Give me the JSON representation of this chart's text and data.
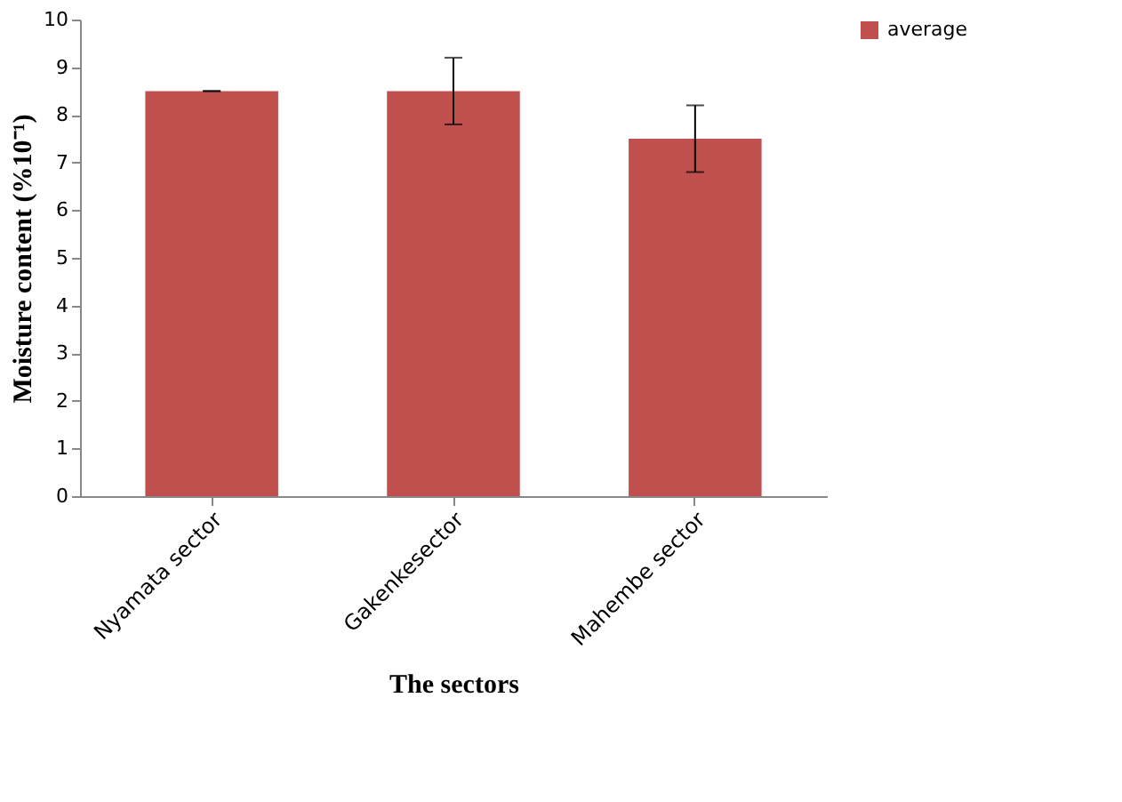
{
  "chart_data": {
    "type": "bar",
    "xlabel": "The sectors",
    "ylabel": "Moisture content (%10⁻¹)",
    "categories": [
      "Nyamata sector",
      "Gakenkesector",
      "Mahembe sector"
    ],
    "series": [
      {
        "name": "average",
        "color": "#c0504d",
        "values": [
          8.5,
          8.5,
          7.5
        ],
        "errors": [
          0,
          0.7,
          0.7
        ]
      }
    ],
    "ylim": [
      0,
      10
    ],
    "yticks": [
      0,
      1,
      2,
      3,
      4,
      5,
      6,
      7,
      8,
      9,
      10
    ],
    "grid": false,
    "legend": "right"
  }
}
